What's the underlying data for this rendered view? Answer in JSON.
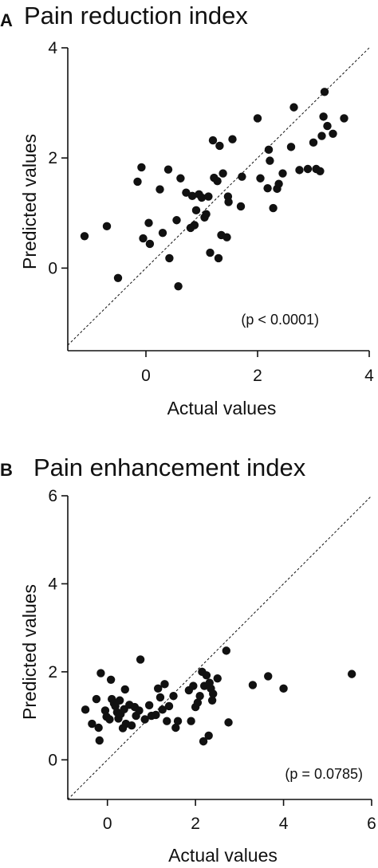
{
  "chart_data": [
    {
      "type": "scatter",
      "panel": "A",
      "title": "Pain reduction index",
      "xlabel": "Actual values",
      "ylabel": "Predicted values",
      "xlim": [
        -1.4,
        4
      ],
      "ylim": [
        -1.5,
        4
      ],
      "xticks": [
        0,
        2,
        4
      ],
      "yticks": [
        0,
        2,
        4
      ],
      "annotation": "(p < 0.0001)",
      "reference_line": "y = x",
      "grid": false,
      "legend": "none",
      "marker_color": "#111111",
      "points": [
        [
          -1.1,
          0.58
        ],
        [
          -0.7,
          0.76
        ],
        [
          -0.5,
          -0.18
        ],
        [
          -0.15,
          1.57
        ],
        [
          -0.08,
          1.83
        ],
        [
          -0.05,
          0.54
        ],
        [
          0.05,
          0.82
        ],
        [
          0.07,
          0.44
        ],
        [
          0.25,
          1.43
        ],
        [
          0.3,
          0.64
        ],
        [
          0.4,
          1.79
        ],
        [
          0.42,
          0.18
        ],
        [
          0.55,
          0.87
        ],
        [
          0.58,
          -0.33
        ],
        [
          0.62,
          1.63
        ],
        [
          0.72,
          1.37
        ],
        [
          0.8,
          0.73
        ],
        [
          0.83,
          1.31
        ],
        [
          0.87,
          0.78
        ],
        [
          0.9,
          1.05
        ],
        [
          0.95,
          1.34
        ],
        [
          1.0,
          1.28
        ],
        [
          1.05,
          0.92
        ],
        [
          1.08,
          0.98
        ],
        [
          1.12,
          1.3
        ],
        [
          1.15,
          0.28
        ],
        [
          1.2,
          2.32
        ],
        [
          1.22,
          1.64
        ],
        [
          1.28,
          1.58
        ],
        [
          1.3,
          0.18
        ],
        [
          1.32,
          2.22
        ],
        [
          1.35,
          0.6
        ],
        [
          1.38,
          1.72
        ],
        [
          1.45,
          0.56
        ],
        [
          1.47,
          1.3
        ],
        [
          1.48,
          1.2
        ],
        [
          1.55,
          2.34
        ],
        [
          1.7,
          1.12
        ],
        [
          1.72,
          1.66
        ],
        [
          2.0,
          2.72
        ],
        [
          2.05,
          1.63
        ],
        [
          2.18,
          1.45
        ],
        [
          2.2,
          2.15
        ],
        [
          2.22,
          1.95
        ],
        [
          2.28,
          1.09
        ],
        [
          2.35,
          1.44
        ],
        [
          2.38,
          1.53
        ],
        [
          2.45,
          1.72
        ],
        [
          2.6,
          2.2
        ],
        [
          2.65,
          2.92
        ],
        [
          2.75,
          1.78
        ],
        [
          2.9,
          1.8
        ],
        [
          3.0,
          2.28
        ],
        [
          3.05,
          1.8
        ],
        [
          3.12,
          1.76
        ],
        [
          3.15,
          2.4
        ],
        [
          3.18,
          2.75
        ],
        [
          3.2,
          3.2
        ],
        [
          3.25,
          2.58
        ],
        [
          3.35,
          2.44
        ],
        [
          3.55,
          2.72
        ]
      ]
    },
    {
      "type": "scatter",
      "panel": "B",
      "title": "Pain enhancement index",
      "xlabel": "Actual values",
      "ylabel": "Predicted values",
      "xlim": [
        -0.9,
        6
      ],
      "ylim": [
        -0.9,
        6
      ],
      "xticks": [
        0,
        2,
        4,
        6
      ],
      "yticks": [
        0,
        2,
        4,
        6
      ],
      "annotation": "(p = 0.0785)",
      "reference_line": "y = x",
      "grid": false,
      "legend": "none",
      "marker_color": "#111111",
      "points": [
        [
          -0.5,
          1.14
        ],
        [
          -0.35,
          0.82
        ],
        [
          -0.25,
          1.38
        ],
        [
          -0.2,
          0.73
        ],
        [
          -0.18,
          0.44
        ],
        [
          -0.15,
          1.97
        ],
        [
          -0.05,
          1.12
        ],
        [
          -0.02,
          0.98
        ],
        [
          0.05,
          0.92
        ],
        [
          0.08,
          1.82
        ],
        [
          0.1,
          1.38
        ],
        [
          0.15,
          1.28
        ],
        [
          0.18,
          1.22
        ],
        [
          0.22,
          1.08
        ],
        [
          0.25,
          0.94
        ],
        [
          0.28,
          1.35
        ],
        [
          0.3,
          1.04
        ],
        [
          0.35,
          0.72
        ],
        [
          0.38,
          1.15
        ],
        [
          0.4,
          1.6
        ],
        [
          0.42,
          0.82
        ],
        [
          0.5,
          1.25
        ],
        [
          0.55,
          0.78
        ],
        [
          0.62,
          1.2
        ],
        [
          0.65,
          1.0
        ],
        [
          0.72,
          1.12
        ],
        [
          0.75,
          2.28
        ],
        [
          0.85,
          0.92
        ],
        [
          0.95,
          1.24
        ],
        [
          1.0,
          1.0
        ],
        [
          1.1,
          1.02
        ],
        [
          1.15,
          1.62
        ],
        [
          1.2,
          1.42
        ],
        [
          1.25,
          1.14
        ],
        [
          1.3,
          1.72
        ],
        [
          1.35,
          0.88
        ],
        [
          1.4,
          1.22
        ],
        [
          1.5,
          1.45
        ],
        [
          1.55,
          0.73
        ],
        [
          1.6,
          0.88
        ],
        [
          1.85,
          1.58
        ],
        [
          1.9,
          0.88
        ],
        [
          1.95,
          1.68
        ],
        [
          2.0,
          1.2
        ],
        [
          2.05,
          1.3
        ],
        [
          2.1,
          1.45
        ],
        [
          2.15,
          2.0
        ],
        [
          2.18,
          0.42
        ],
        [
          2.2,
          1.68
        ],
        [
          2.25,
          1.92
        ],
        [
          2.3,
          0.55
        ],
        [
          2.32,
          1.75
        ],
        [
          2.35,
          1.62
        ],
        [
          2.38,
          1.35
        ],
        [
          2.4,
          1.5
        ],
        [
          2.5,
          1.85
        ],
        [
          2.7,
          2.48
        ],
        [
          2.75,
          0.85
        ],
        [
          3.3,
          1.7
        ],
        [
          3.65,
          1.9
        ],
        [
          4.0,
          1.62
        ],
        [
          5.55,
          1.95
        ]
      ]
    }
  ]
}
